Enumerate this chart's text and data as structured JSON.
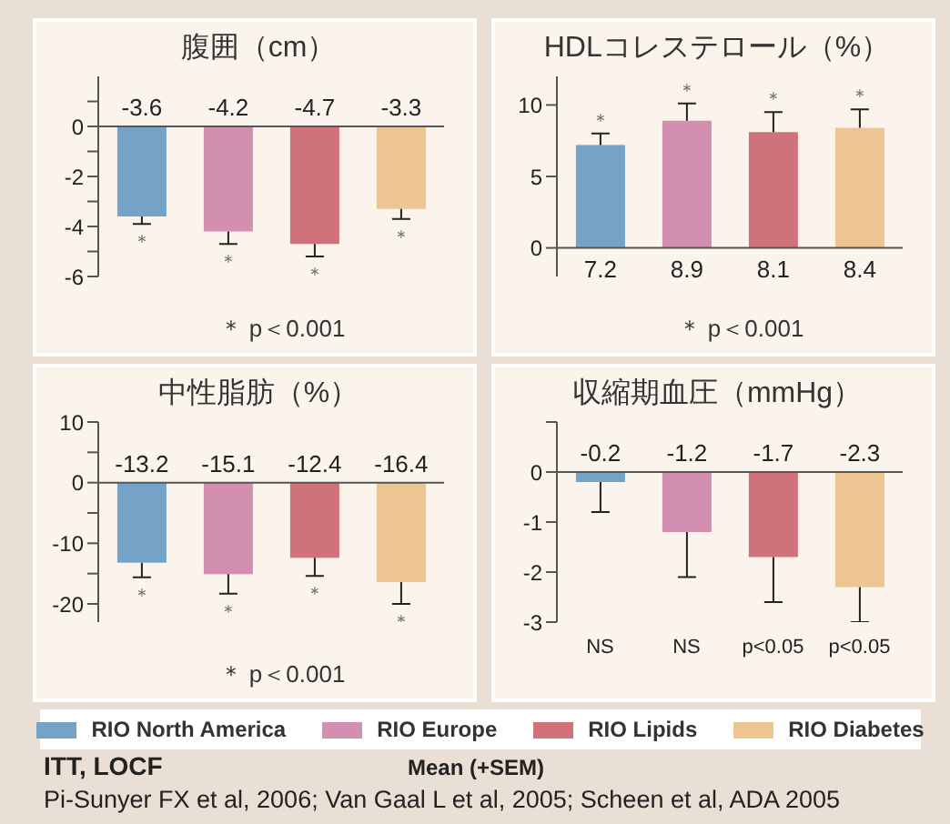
{
  "chart_data": [
    {
      "type": "bar",
      "title": "腹囲（cm）",
      "stacked": true,
      "legend": "bottom",
      "data_labels": true,
      "categories": [
        null,
        null,
        null,
        null
      ],
      "ylim": [
        -6,
        2
      ],
      "yticks": [
        -6,
        {
          "value": -5,
          "label": null
        },
        -4,
        {
          "value": -3,
          "label": null
        },
        -2,
        {
          "value": -1,
          "label": null
        },
        0,
        {
          "value": 1,
          "label": null
        }
      ],
      "series": [
        {
          "name": "RIO North America",
          "color": "#75a3c8",
          "values": [
            -3.6,
            null,
            null,
            null
          ],
          "errors": [
            [
              -3.9,
              -3.6
            ],
            null,
            null,
            null
          ]
        },
        {
          "name": "RIO Europe",
          "color": "#d38fb0",
          "values": [
            null,
            -4.2,
            null,
            null
          ],
          "errors": [
            null,
            [
              -4.7,
              -4.2
            ],
            null,
            null
          ]
        },
        {
          "name": "RIO Lipids",
          "color": "#d0727a",
          "values": [
            null,
            null,
            -4.7,
            null
          ],
          "errors": [
            null,
            null,
            [
              -5.2,
              -4.7
            ],
            null
          ]
        },
        {
          "name": "RIO Diabetes",
          "color": "#ecc592",
          "values": [
            null,
            null,
            null,
            -3.3
          ],
          "errors": [
            null,
            null,
            null,
            [
              -3.7,
              -3.3
            ]
          ]
        }
      ],
      "annotations": [
        "＊",
        "＊",
        "＊",
        "＊",
        "＊ p＜0.001"
      ]
    },
    {
      "type": "bar",
      "title": "HDLコレステロール（%）",
      "stacked": true,
      "legend": "bottom",
      "data_labels": true,
      "categories": [
        null,
        null,
        null,
        null
      ],
      "ylim": [
        -2,
        12
      ],
      "yticks": [
        0,
        5,
        10
      ],
      "series": [
        {
          "name": "RIO North America",
          "color": "#75a3c8",
          "values": [
            7.2,
            null,
            null,
            null
          ],
          "errors": [
            [
              7.2,
              8
            ],
            null,
            null,
            null
          ]
        },
        {
          "name": "RIO Europe",
          "color": "#d38fb0",
          "values": [
            null,
            8.9,
            null,
            null
          ],
          "errors": [
            null,
            [
              8.9,
              10.1
            ],
            null,
            null
          ]
        },
        {
          "name": "RIO Lipids",
          "color": "#d0727a",
          "values": [
            null,
            null,
            8.1,
            null
          ],
          "errors": [
            null,
            null,
            [
              8.1,
              9.5
            ],
            null
          ]
        },
        {
          "name": "RIO Diabetes",
          "color": "#ecc592",
          "values": [
            null,
            null,
            null,
            8.4
          ],
          "errors": [
            null,
            null,
            null,
            [
              8.4,
              9.7
            ]
          ]
        }
      ],
      "annotations": [
        "＊",
        "＊",
        "＊",
        "＊",
        "＊ p＜0.001"
      ]
    },
    {
      "type": "bar",
      "title": "中性脂肪（%）",
      "stacked": true,
      "legend": "bottom",
      "data_labels": true,
      "categories": [
        null,
        null,
        null,
        null
      ],
      "ylim": [
        -23,
        10
      ],
      "yticks": [
        -20,
        {
          "value": -15,
          "label": null
        },
        -10,
        {
          "value": -5,
          "label": null
        },
        0,
        {
          "value": 5,
          "label": null
        },
        10
      ],
      "series": [
        {
          "name": "RIO North America",
          "color": "#75a3c8",
          "values": [
            -13.2,
            null,
            null,
            null
          ],
          "errors": [
            [
              -15.6,
              -13.2
            ],
            null,
            null,
            null
          ]
        },
        {
          "name": "RIO Europe",
          "color": "#d38fb0",
          "values": [
            null,
            -15.1,
            null,
            null
          ],
          "errors": [
            null,
            [
              -18.3,
              -15.1
            ],
            null,
            null
          ]
        },
        {
          "name": "RIO Lipids",
          "color": "#d0727a",
          "values": [
            null,
            null,
            -12.4,
            null
          ],
          "errors": [
            null,
            null,
            [
              -15.4,
              -12.4
            ],
            null
          ]
        },
        {
          "name": "RIO Diabetes",
          "color": "#ecc592",
          "values": [
            null,
            null,
            null,
            -16.4
          ],
          "errors": [
            null,
            null,
            null,
            [
              -20,
              -16.4
            ]
          ]
        }
      ],
      "annotations": [
        "＊",
        "＊",
        "＊",
        "＊",
        "＊ p＜0.001"
      ]
    },
    {
      "type": "bar",
      "title": "収縮期血圧（mmHg）",
      "stacked": true,
      "legend": "bottom",
      "data_labels": true,
      "categories": [
        "NS",
        "NS",
        "p<0.05",
        "p<0.05"
      ],
      "ylim": [
        -3,
        1
      ],
      "yticks": [
        -3,
        -2,
        -1,
        0,
        {
          "value": 1,
          "label": null
        }
      ],
      "series": [
        {
          "name": "RIO North America",
          "color": "#75a3c8",
          "values": [
            -0.2,
            null,
            null,
            null
          ],
          "errors": [
            [
              -0.8,
              -0.2
            ],
            null,
            null,
            null
          ]
        },
        {
          "name": "RIO Europe",
          "color": "#d38fb0",
          "values": [
            null,
            -1.2,
            null,
            null
          ],
          "errors": [
            null,
            [
              -2.1,
              -1.2
            ],
            null,
            null
          ]
        },
        {
          "name": "RIO Lipids",
          "color": "#d0727a",
          "values": [
            null,
            null,
            -1.7,
            null
          ],
          "errors": [
            null,
            null,
            [
              -2.6,
              -1.7
            ],
            null
          ]
        },
        {
          "name": "RIO Diabetes",
          "color": "#ecc592",
          "values": [
            null,
            null,
            null,
            -2.3
          ],
          "errors": [
            null,
            null,
            null,
            [
              -3,
              -2.3
            ]
          ]
        }
      ]
    },
    {
      "type": "other",
      "annotations": [
        "ITT, LOCF",
        "Mean (+SEM)",
        "Pi-Sunyer FX et al, 2006; Van Gaal L et al, 2005; Scheen et al, ADA 2005"
      ]
    }
  ]
}
